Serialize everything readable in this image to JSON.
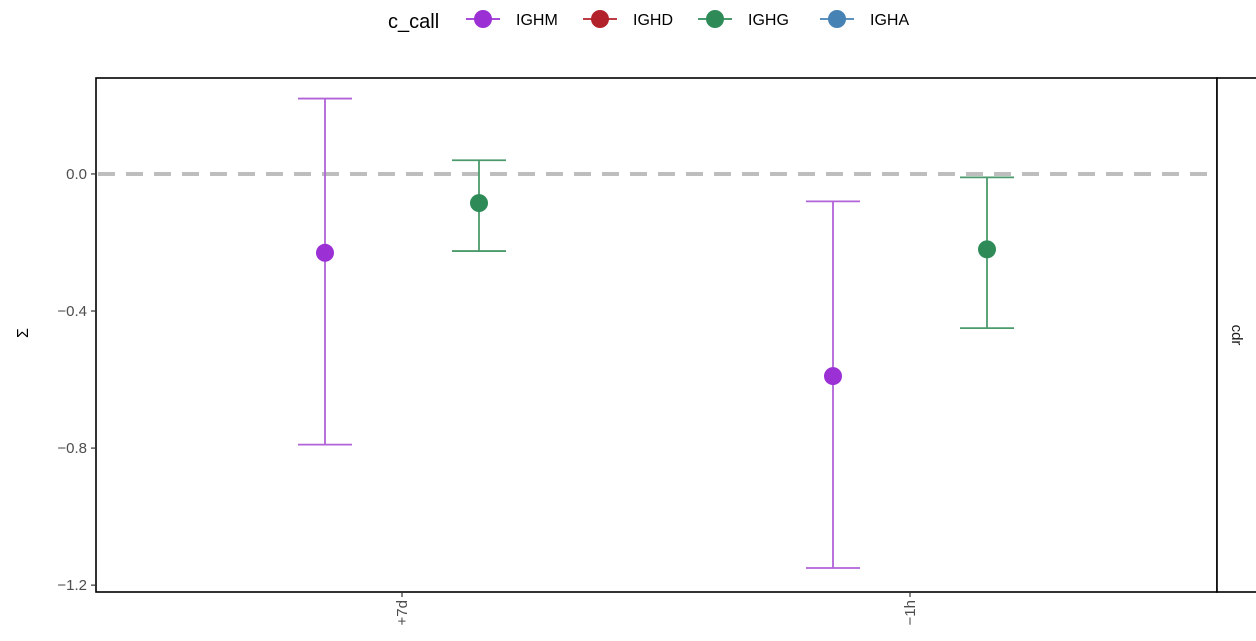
{
  "chart_data": {
    "type": "scatter",
    "subtype": "point-range (point with error bars), dodged by group",
    "legend": {
      "title": "c_call",
      "position": "top",
      "entries": [
        {
          "name": "IGHM",
          "color": "#9b30d4"
        },
        {
          "name": "IGHD",
          "color": "#b2222a"
        },
        {
          "name": "IGHG",
          "color": "#2e8b57"
        },
        {
          "name": "IGHA",
          "color": "#4682b4"
        }
      ]
    },
    "ylabel": "Σ",
    "xlabel": "",
    "facet_label": "cdr",
    "categories": [
      "+7d",
      "−1h"
    ],
    "ylim": [
      -1.22,
      0.28
    ],
    "y_ticks": [
      {
        "value": 0.0,
        "label": "0.0"
      },
      {
        "value": -0.4,
        "label": "−0.4"
      },
      {
        "value": -0.8,
        "label": "−0.8"
      },
      {
        "value": -1.2,
        "label": "−1.2"
      }
    ],
    "reference_line": {
      "value": 0.0,
      "style": "dashed",
      "color": "#bebebe"
    },
    "grid": false,
    "series": [
      {
        "name": "IGHM",
        "color": "#9b30d4",
        "errorbar_color": "#b163d8",
        "points": [
          {
            "category": "+7d",
            "y": -0.23,
            "ymin": -0.79,
            "ymax": 0.22
          },
          {
            "category": "−1h",
            "y": -0.59,
            "ymin": -1.15,
            "ymax": -0.08
          }
        ]
      },
      {
        "name": "IGHG",
        "color": "#2e8b57",
        "errorbar_color": "#4b9a6c",
        "points": [
          {
            "category": "+7d",
            "y": -0.085,
            "ymin": -0.225,
            "ymax": 0.04
          },
          {
            "category": "−1h",
            "y": -0.22,
            "ymin": -0.45,
            "ymax": -0.01
          }
        ]
      }
    ]
  }
}
